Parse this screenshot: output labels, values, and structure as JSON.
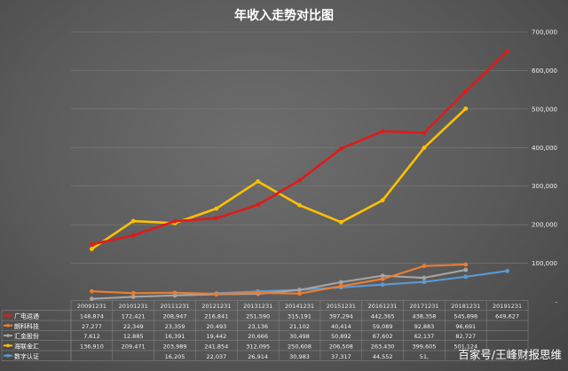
{
  "chart_data": {
    "type": "line",
    "title": "年收入走势对比图",
    "xlabel": "",
    "ylabel": "",
    "ylim": [
      0,
      700000
    ],
    "yticks": [
      "-",
      "100,000",
      "200,000",
      "300,000",
      "400,000",
      "500,000",
      "600,000",
      "700,000"
    ],
    "grid": true,
    "legend": "data-table-below",
    "categories": [
      "20091231",
      "20101231",
      "20111231",
      "20121231",
      "20131231",
      "20141231",
      "20151231",
      "20161231",
      "20171231",
      "20181231",
      "20191231"
    ],
    "series": [
      {
        "name": "广电运通",
        "color": "#e01a1a",
        "labels": [
          "148,874",
          "172,421",
          "208,947",
          "216,841",
          "251,590",
          "315,191",
          "397,294",
          "442,365",
          "438,358",
          "545,898",
          "649,627"
        ],
        "values": [
          148874,
          172421,
          208947,
          216841,
          251590,
          315191,
          397294,
          442365,
          438358,
          545898,
          649627
        ]
      },
      {
        "name": "朗科科技",
        "color": "#ed7d31",
        "labels": [
          "27,277",
          "22,349",
          "23,359",
          "20,493",
          "23,136",
          "21,102",
          "40,414",
          "59,089",
          "92,883",
          "96,691",
          ""
        ],
        "values": [
          27277,
          22349,
          23359,
          20493,
          23136,
          21102,
          40414,
          59089,
          92883,
          96691,
          null
        ]
      },
      {
        "name": "汇金股份",
        "color": "#a5a5a5",
        "labels": [
          "7,612",
          "12,885",
          "16,391",
          "19,442",
          "20,666",
          "30,498",
          "50,892",
          "67,602",
          "62,137",
          "82,727",
          ""
        ],
        "values": [
          7612,
          12885,
          16391,
          19442,
          20666,
          30498,
          50892,
          67602,
          62137,
          82727,
          null
        ]
      },
      {
        "name": "海联金汇",
        "color": "#ffc000",
        "labels": [
          "136,910",
          "209,471",
          "203,989",
          "241,854",
          "312,095",
          "250,608",
          "206,508",
          "263,430",
          "399,605",
          "501,124",
          ""
        ],
        "values": [
          136910,
          209471,
          203989,
          241854,
          312095,
          250608,
          206508,
          263430,
          399605,
          501124,
          null
        ]
      },
      {
        "name": "数字认证",
        "color": "#5b9bd5",
        "labels": [
          "",
          "",
          "16,205",
          "22,037",
          "26,914",
          "30,983",
          "37,317",
          "44,552",
          "51,",
          "",
          ""
        ],
        "values": [
          null,
          null,
          16205,
          22037,
          26914,
          30983,
          37317,
          44552,
          51500,
          65000,
          80000
        ]
      }
    ]
  },
  "watermark": "百家号/王峰财报思维"
}
